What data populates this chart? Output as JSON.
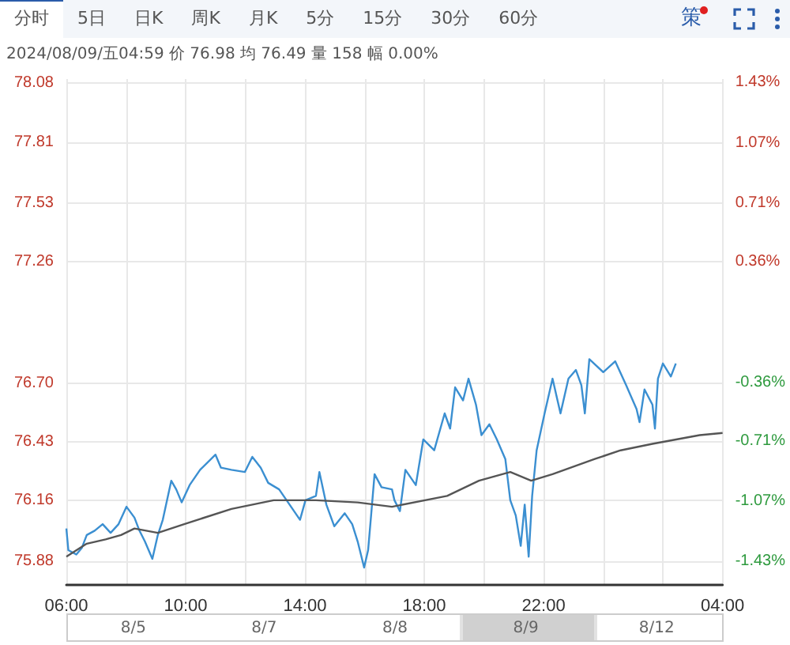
{
  "chart_data": {
    "type": "line",
    "subtitle": "2024/08/09/五04:59 价 76.98 均 76.49 量 158 幅 0.00%",
    "annotations": [
      "分时",
      "5日",
      "日K",
      "周K",
      "月K",
      "5分",
      "15分",
      "30分",
      "60分",
      "策",
      "8/5",
      "8/7",
      "8/8",
      "8/9",
      "8/12"
    ],
    "xlim": [
      "2024-08-08T06:00",
      "2024-08-09T04:00"
    ],
    "xticks": [
      {
        "value": "2024-08-08T06:00",
        "label": "06:00"
      },
      {
        "value": "2024-08-08T08:00",
        "label": null
      },
      {
        "value": "2024-08-08T10:00",
        "label": "10:00"
      },
      {
        "value": "2024-08-08T12:00",
        "label": null
      },
      {
        "value": "2024-08-08T14:00",
        "label": "14:00"
      },
      {
        "value": "2024-08-08T16:00",
        "label": null
      },
      {
        "value": "2024-08-08T18:00",
        "label": "18:00"
      },
      {
        "value": "2024-08-08T20:00",
        "label": null
      },
      {
        "value": "2024-08-08T22:00",
        "label": "22:00"
      },
      {
        "value": "2024-08-09T00:00",
        "label": null
      },
      {
        "value": "2024-08-09T02:00",
        "label": null
      },
      {
        "value": "2024-08-09T04:00",
        "label": "04:00"
      }
    ],
    "ylim": [
      75.77,
      78.1
    ],
    "yticks": [
      78.08,
      77.81,
      77.53,
      77.26,
      {
        "value": 76.7,
        "label": "76.70"
      },
      76.43,
      76.16,
      75.88
    ],
    "y2lim": [
      -1.57,
      1.45
    ],
    "y2ticks": [
      {
        "value": 1.43,
        "label": "1.43%"
      },
      {
        "value": 1.07,
        "label": "1.07%"
      },
      {
        "value": 0.71,
        "label": "0.71%"
      },
      {
        "value": 0.36,
        "label": "0.36%"
      },
      {
        "value": -0.36,
        "label": "-0.36%"
      },
      {
        "value": -0.71,
        "label": "-0.71%"
      },
      {
        "value": -1.07,
        "label": "-1.07%"
      },
      {
        "value": -1.43,
        "label": "-1.43%"
      }
    ],
    "grid": true,
    "marker": "none",
    "line_style": "solid",
    "series": [
      {
        "color": "#3b8fd1",
        "x": [
          "2024-08-08T06:00",
          "2024-08-08T06:04",
          "2024-08-08T06:20",
          "2024-08-08T06:31",
          "2024-08-08T06:41",
          "2024-08-08T06:57",
          "2024-08-08T07:13",
          "2024-08-08T07:29",
          "2024-08-08T07:45",
          "2024-08-08T08:01",
          "2024-08-08T08:17",
          "2024-08-08T08:27",
          "2024-08-08T08:38",
          "2024-08-08T08:53",
          "2024-08-08T09:04",
          "2024-08-08T09:14",
          "2024-08-08T09:31",
          "2024-08-08T09:41",
          "2024-08-08T09:52",
          "2024-08-08T10:08",
          "2024-08-08T10:29",
          "2024-08-08T11:00",
          "2024-08-08T11:11",
          "2024-08-08T11:32",
          "2024-08-08T11:59",
          "2024-08-08T12:14",
          "2024-08-08T12:31",
          "2024-08-08T12:46",
          "2024-08-08T13:08",
          "2024-08-08T13:29",
          "2024-08-08T13:50",
          "2024-08-08T14:01",
          "2024-08-08T14:22",
          "2024-08-08T14:29",
          "2024-08-08T14:43",
          "2024-08-08T14:59",
          "2024-08-08T15:20",
          "2024-08-08T15:35",
          "2024-08-08T15:46",
          "2024-08-08T15:59",
          "2024-08-08T16:07",
          "2024-08-08T16:13",
          "2024-08-08T16:20",
          "2024-08-08T16:34",
          "2024-08-08T16:55",
          "2024-08-08T17:00",
          "2024-08-08T17:11",
          "2024-08-08T17:22",
          "2024-08-08T17:43",
          "2024-08-08T17:58",
          "2024-08-08T18:20",
          "2024-08-08T18:41",
          "2024-08-08T18:52",
          "2024-08-08T19:02",
          "2024-08-08T19:18",
          "2024-08-08T19:29",
          "2024-08-08T19:44",
          "2024-08-08T19:55",
          "2024-08-08T20:11",
          "2024-08-08T20:26",
          "2024-08-08T20:43",
          "2024-08-08T20:53",
          "2024-08-08T21:04",
          "2024-08-08T21:14",
          "2024-08-08T21:22",
          "2024-08-08T21:30",
          "2024-08-08T21:37",
          "2024-08-08T21:46",
          "2024-08-08T22:02",
          "2024-08-08T22:18",
          "2024-08-08T22:34",
          "2024-08-08T22:50",
          "2024-08-08T23:05",
          "2024-08-08T23:16",
          "2024-08-08T23:23",
          "2024-08-08T23:32",
          "2024-08-09T00:00",
          "2024-08-09T00:24",
          "2024-08-09T00:46",
          "2024-08-09T01:07",
          "2024-08-09T01:13",
          "2024-08-09T01:23",
          "2024-08-09T01:39",
          "2024-08-09T01:44",
          "2024-08-09T01:50",
          "2024-08-09T02:00",
          "2024-08-09T02:16",
          "2024-08-09T02:26"
        ],
        "values": [
          76.03,
          75.93,
          75.91,
          75.94,
          76.0,
          76.02,
          76.05,
          76.01,
          76.05,
          76.13,
          76.08,
          76.02,
          75.97,
          75.89,
          76.0,
          76.07,
          76.25,
          76.21,
          76.15,
          76.23,
          76.3,
          76.37,
          76.31,
          76.3,
          76.29,
          76.36,
          76.31,
          76.24,
          76.21,
          76.14,
          76.07,
          76.16,
          76.18,
          76.29,
          76.14,
          76.04,
          76.1,
          76.05,
          75.97,
          75.85,
          75.93,
          76.09,
          76.28,
          76.22,
          76.21,
          76.16,
          76.11,
          76.3,
          76.23,
          76.44,
          76.39,
          76.56,
          76.49,
          76.68,
          76.62,
          76.72,
          76.6,
          76.46,
          76.51,
          76.44,
          76.35,
          76.16,
          76.09,
          75.95,
          76.14,
          75.9,
          76.18,
          76.39,
          76.56,
          76.72,
          76.56,
          76.72,
          76.76,
          76.69,
          76.56,
          76.81,
          76.75,
          76.8,
          76.69,
          76.58,
          76.52,
          76.67,
          76.6,
          76.49,
          76.72,
          76.79,
          76.73,
          76.79
        ]
      },
      {
        "color": "#555555",
        "x": [
          "2024-08-08T06:00",
          "2024-08-08T06:41",
          "2024-08-08T07:19",
          "2024-08-08T07:50",
          "2024-08-08T08:17",
          "2024-08-08T09:04",
          "2024-08-08T09:57",
          "2024-08-08T11:32",
          "2024-08-08T12:57",
          "2024-08-08T14:22",
          "2024-08-08T15:46",
          "2024-08-08T16:55",
          "2024-08-08T18:46",
          "2024-08-08T19:50",
          "2024-08-08T20:53",
          "2024-08-08T21:35",
          "2024-08-08T22:18",
          "2024-08-08T23:43",
          "2024-08-09T00:35",
          "2024-08-09T01:39",
          "2024-08-09T03:14",
          "2024-08-09T04:00"
        ],
        "values": [
          75.9,
          75.96,
          75.98,
          76.0,
          76.03,
          76.01,
          76.05,
          76.12,
          76.16,
          76.16,
          76.15,
          76.13,
          76.18,
          76.25,
          76.29,
          76.25,
          76.28,
          76.35,
          76.39,
          76.42,
          76.46,
          76.47
        ]
      }
    ]
  }
}
